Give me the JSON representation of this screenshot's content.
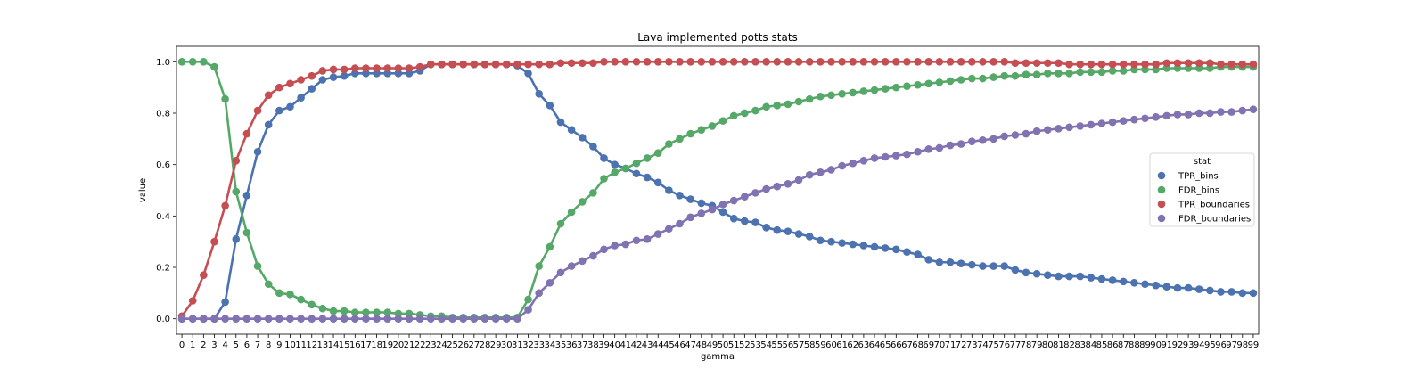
{
  "chart_data": {
    "type": "line",
    "title": "Lava implemented potts stats",
    "xlabel": "gamma",
    "ylabel": "value",
    "ylim": [
      -0.06,
      1.06
    ],
    "yticks": [
      "0.0",
      "0.2",
      "0.4",
      "0.6",
      "0.8",
      "1.0"
    ],
    "grid": false,
    "legend_position": "center-right",
    "legend_title": "stat",
    "x": [
      0,
      1,
      2,
      3,
      4,
      5,
      6,
      7,
      8,
      9,
      10,
      11,
      12,
      13,
      14,
      15,
      16,
      17,
      18,
      19,
      20,
      21,
      22,
      23,
      24,
      25,
      26,
      27,
      28,
      29,
      30,
      31,
      32,
      33,
      34,
      35,
      36,
      37,
      38,
      39,
      40,
      41,
      42,
      43,
      44,
      45,
      46,
      47,
      48,
      49,
      50,
      51,
      52,
      53,
      54,
      55,
      56,
      57,
      58,
      59,
      60,
      61,
      62,
      63,
      64,
      65,
      66,
      67,
      68,
      69,
      70,
      71,
      72,
      73,
      74,
      75,
      76,
      77,
      78,
      79,
      80,
      81,
      82,
      83,
      84,
      85,
      86,
      87,
      88,
      89,
      90,
      91,
      92,
      93,
      94,
      95,
      96,
      97,
      98,
      99
    ],
    "series": [
      {
        "name": "TPR_bins",
        "color": "#4c72b0",
        "values": [
          0.0,
          0.0,
          0.0,
          0.0,
          0.065,
          0.31,
          0.48,
          0.65,
          0.755,
          0.81,
          0.825,
          0.86,
          0.895,
          0.93,
          0.94,
          0.945,
          0.955,
          0.955,
          0.955,
          0.955,
          0.955,
          0.955,
          0.965,
          0.99,
          0.99,
          0.99,
          0.99,
          0.99,
          0.99,
          0.99,
          0.99,
          0.985,
          0.955,
          0.875,
          0.83,
          0.765,
          0.735,
          0.705,
          0.67,
          0.625,
          0.6,
          0.585,
          0.565,
          0.55,
          0.53,
          0.5,
          0.48,
          0.465,
          0.45,
          0.44,
          0.415,
          0.39,
          0.38,
          0.375,
          0.355,
          0.345,
          0.34,
          0.33,
          0.32,
          0.305,
          0.3,
          0.295,
          0.29,
          0.285,
          0.28,
          0.275,
          0.27,
          0.26,
          0.25,
          0.23,
          0.22,
          0.22,
          0.215,
          0.21,
          0.205,
          0.205,
          0.205,
          0.19,
          0.18,
          0.175,
          0.17,
          0.165,
          0.165,
          0.165,
          0.16,
          0.155,
          0.15,
          0.145,
          0.14,
          0.135,
          0.13,
          0.125,
          0.12,
          0.12,
          0.115,
          0.11,
          0.105,
          0.105,
          0.1,
          0.1
        ]
      },
      {
        "name": "FDR_bins",
        "color": "#55a868",
        "values": [
          1.0,
          1.0,
          1.0,
          0.98,
          0.855,
          0.495,
          0.335,
          0.205,
          0.135,
          0.1,
          0.095,
          0.075,
          0.055,
          0.04,
          0.03,
          0.03,
          0.025,
          0.025,
          0.025,
          0.025,
          0.02,
          0.02,
          0.015,
          0.01,
          0.01,
          0.005,
          0.005,
          0.005,
          0.005,
          0.005,
          0.005,
          0.005,
          0.075,
          0.205,
          0.28,
          0.37,
          0.415,
          0.455,
          0.49,
          0.545,
          0.57,
          0.585,
          0.605,
          0.625,
          0.645,
          0.68,
          0.7,
          0.72,
          0.735,
          0.75,
          0.77,
          0.79,
          0.8,
          0.81,
          0.825,
          0.83,
          0.835,
          0.845,
          0.855,
          0.865,
          0.87,
          0.875,
          0.88,
          0.885,
          0.89,
          0.895,
          0.9,
          0.905,
          0.91,
          0.915,
          0.92,
          0.925,
          0.93,
          0.935,
          0.935,
          0.94,
          0.945,
          0.945,
          0.95,
          0.95,
          0.955,
          0.955,
          0.955,
          0.96,
          0.96,
          0.96,
          0.965,
          0.965,
          0.97,
          0.97,
          0.97,
          0.975,
          0.975,
          0.975,
          0.975,
          0.975,
          0.98,
          0.98,
          0.98,
          0.98
        ]
      },
      {
        "name": "TPR_boundaries",
        "color": "#c44e52",
        "values": [
          0.01,
          0.07,
          0.17,
          0.3,
          0.44,
          0.615,
          0.72,
          0.81,
          0.87,
          0.9,
          0.915,
          0.93,
          0.945,
          0.965,
          0.97,
          0.97,
          0.975,
          0.975,
          0.975,
          0.975,
          0.975,
          0.975,
          0.98,
          0.99,
          0.99,
          0.99,
          0.99,
          0.99,
          0.99,
          0.99,
          0.99,
          0.99,
          0.99,
          0.99,
          0.99,
          0.995,
          0.995,
          0.995,
          0.995,
          1.0,
          1.0,
          1.0,
          1.0,
          1.0,
          1.0,
          1.0,
          1.0,
          1.0,
          1.0,
          1.0,
          1.0,
          1.0,
          1.0,
          1.0,
          1.0,
          1.0,
          1.0,
          1.0,
          1.0,
          1.0,
          1.0,
          1.0,
          1.0,
          1.0,
          1.0,
          1.0,
          1.0,
          1.0,
          1.0,
          1.0,
          1.0,
          1.0,
          1.0,
          1.0,
          1.0,
          1.0,
          1.0,
          0.995,
          0.995,
          0.995,
          0.995,
          0.995,
          0.99,
          0.99,
          0.99,
          0.99,
          0.99,
          0.99,
          0.99,
          0.99,
          0.99,
          0.995,
          0.995,
          0.995,
          0.995,
          0.995,
          0.99,
          0.99,
          0.99,
          0.99
        ]
      },
      {
        "name": "FDR_boundaries",
        "color": "#8172b2",
        "values": [
          0.0,
          0.0,
          0.0,
          0.0,
          0.0,
          0.0,
          0.0,
          0.0,
          0.0,
          0.0,
          0.0,
          0.0,
          0.0,
          0.0,
          0.0,
          0.0,
          0.0,
          0.0,
          0.0,
          0.0,
          0.0,
          0.0,
          0.0,
          0.0,
          0.0,
          0.0,
          0.0,
          0.0,
          0.0,
          0.0,
          0.0,
          0.0,
          0.035,
          0.1,
          0.14,
          0.18,
          0.205,
          0.225,
          0.245,
          0.27,
          0.285,
          0.29,
          0.305,
          0.31,
          0.33,
          0.35,
          0.37,
          0.395,
          0.41,
          0.425,
          0.445,
          0.46,
          0.475,
          0.49,
          0.505,
          0.515,
          0.525,
          0.54,
          0.56,
          0.57,
          0.58,
          0.595,
          0.605,
          0.615,
          0.625,
          0.63,
          0.635,
          0.64,
          0.65,
          0.66,
          0.665,
          0.675,
          0.68,
          0.69,
          0.695,
          0.7,
          0.71,
          0.715,
          0.72,
          0.73,
          0.735,
          0.74,
          0.745,
          0.75,
          0.755,
          0.76,
          0.765,
          0.77,
          0.775,
          0.78,
          0.785,
          0.79,
          0.795,
          0.795,
          0.8,
          0.8,
          0.805,
          0.805,
          0.81,
          0.815
        ]
      }
    ]
  }
}
